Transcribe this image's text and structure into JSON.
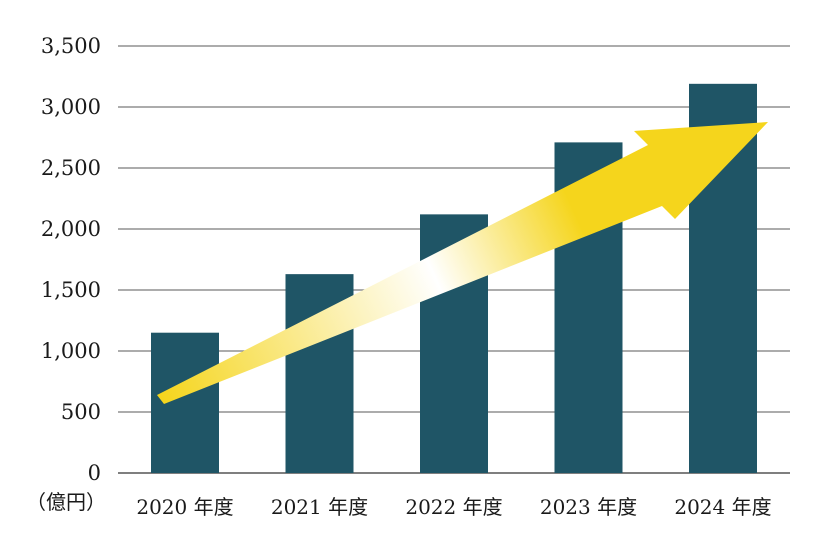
{
  "chart_data": {
    "type": "bar",
    "categories": [
      "2020 年度",
      "2021 年度",
      "2022 年度",
      "2023 年度",
      "2024 年度"
    ],
    "values": [
      1150,
      1630,
      2120,
      2710,
      3190
    ],
    "ylim": [
      0,
      3500
    ],
    "yticks": [
      0,
      500,
      1000,
      1500,
      2000,
      2500,
      3000,
      3500
    ],
    "ytick_labels": [
      "0",
      "500",
      "1,000",
      "1,500",
      "2,000",
      "2,500",
      "3,000",
      "3,500"
    ],
    "unit_label": "（億円）",
    "grid": true,
    "trend_arrow": true,
    "colors": {
      "bar": "#1f5566",
      "arrow": "#f5d51c",
      "arrow_highlight": "#ffffff",
      "grid": "#7a7a7a"
    }
  }
}
